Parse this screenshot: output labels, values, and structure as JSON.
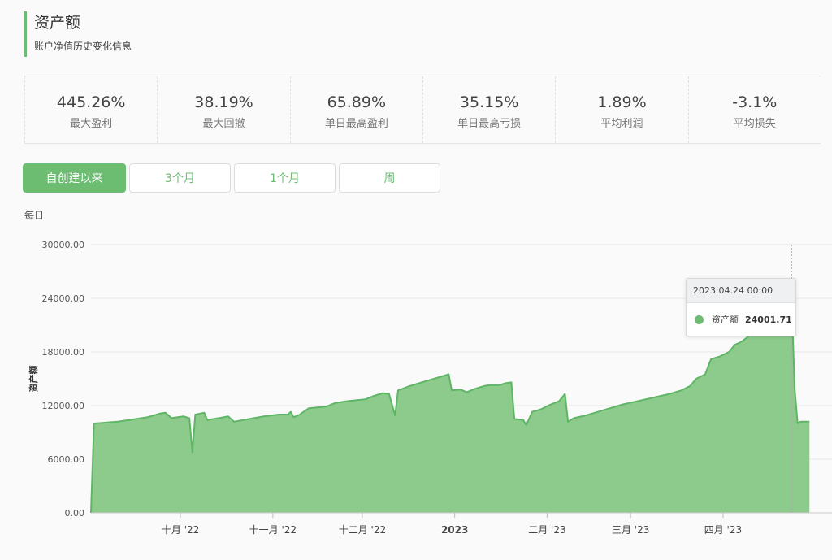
{
  "header": {
    "title": "资产额",
    "subtitle": "账户净值历史变化信息"
  },
  "stats": [
    {
      "value": "445.26%",
      "label": "最大盈利"
    },
    {
      "value": "38.19%",
      "label": "最大回撤"
    },
    {
      "value": "65.89%",
      "label": "单日最高盈利"
    },
    {
      "value": "35.15%",
      "label": "单日最高亏损"
    },
    {
      "value": "1.89%",
      "label": "平均利润"
    },
    {
      "value": "-3.1%",
      "label": "平均损失"
    }
  ],
  "tabs": [
    "自创建以来",
    "3个月",
    "1个月",
    "周"
  ],
  "period_label": "每日",
  "colors": {
    "accent": "#6cbd72",
    "fill": "#8dcb8c",
    "line": "#5fb566"
  },
  "tooltip": {
    "date": "2023.04.24 00:00",
    "series": "资产额",
    "value": "24001.71"
  },
  "chart_data": {
    "type": "area",
    "ylabel": "资产额",
    "xlabel": "",
    "ylim": [
      0,
      30000
    ],
    "y_ticks": [
      "0.00",
      "6000.00",
      "12000.00",
      "18000.00",
      "24000.00",
      "30000.00"
    ],
    "x_ticks": [
      {
        "label": "十月 '22",
        "date": "2022-10-01"
      },
      {
        "label": "十一月 '22",
        "date": "2022-11-01"
      },
      {
        "label": "十二月 '22",
        "date": "2022-12-01"
      },
      {
        "label": "2023",
        "date": "2023-01-01"
      },
      {
        "label": "二月 '23",
        "date": "2023-02-01"
      },
      {
        "label": "三月 '23",
        "date": "2023-03-01"
      },
      {
        "label": "四月 '23",
        "date": "2023-04-01"
      }
    ],
    "xlim": [
      "2022-09-01",
      "2023-05-01"
    ],
    "series": [
      {
        "name": "资产额",
        "points": [
          [
            "2022-09-01",
            0
          ],
          [
            "2022-09-02",
            10000
          ],
          [
            "2022-09-06",
            10100
          ],
          [
            "2022-09-10",
            10200
          ],
          [
            "2022-09-14",
            10400
          ],
          [
            "2022-09-20",
            10700
          ],
          [
            "2022-09-24",
            11100
          ],
          [
            "2022-09-26",
            11200
          ],
          [
            "2022-09-28",
            10600
          ],
          [
            "2022-10-02",
            10800
          ],
          [
            "2022-10-04",
            10600
          ],
          [
            "2022-10-05",
            6800
          ],
          [
            "2022-10-06",
            11000
          ],
          [
            "2022-10-09",
            11200
          ],
          [
            "2022-10-10",
            10400
          ],
          [
            "2022-10-14",
            10600
          ],
          [
            "2022-10-17",
            10800
          ],
          [
            "2022-10-19",
            10200
          ],
          [
            "2022-10-24",
            10500
          ],
          [
            "2022-10-29",
            10800
          ],
          [
            "2022-11-03",
            11000
          ],
          [
            "2022-11-06",
            11000
          ],
          [
            "2022-11-07",
            11300
          ],
          [
            "2022-11-08",
            10700
          ],
          [
            "2022-11-10",
            11000
          ],
          [
            "2022-11-13",
            11700
          ],
          [
            "2022-11-16",
            11800
          ],
          [
            "2022-11-19",
            11900
          ],
          [
            "2022-11-22",
            12300
          ],
          [
            "2022-11-26",
            12500
          ],
          [
            "2022-11-29",
            12600
          ],
          [
            "2022-12-02",
            12700
          ],
          [
            "2022-12-05",
            13100
          ],
          [
            "2022-12-08",
            13400
          ],
          [
            "2022-12-10",
            13300
          ],
          [
            "2022-12-12",
            10900
          ],
          [
            "2022-12-13",
            13700
          ],
          [
            "2022-12-17",
            14200
          ],
          [
            "2022-12-20",
            14500
          ],
          [
            "2022-12-24",
            14900
          ],
          [
            "2022-12-27",
            15200
          ],
          [
            "2022-12-30",
            15500
          ],
          [
            "2022-12-31",
            13700
          ],
          [
            "2023-01-03",
            13800
          ],
          [
            "2023-01-05",
            13500
          ],
          [
            "2023-01-08",
            13900
          ],
          [
            "2023-01-11",
            14200
          ],
          [
            "2023-01-13",
            14300
          ],
          [
            "2023-01-16",
            14300
          ],
          [
            "2023-01-18",
            14500
          ],
          [
            "2023-01-20",
            14600
          ],
          [
            "2023-01-21",
            10500
          ],
          [
            "2023-01-24",
            10400
          ],
          [
            "2023-01-25",
            9800
          ],
          [
            "2023-01-27",
            11300
          ],
          [
            "2023-01-30",
            11600
          ],
          [
            "2023-02-02",
            12100
          ],
          [
            "2023-02-05",
            12500
          ],
          [
            "2023-02-07",
            13300
          ],
          [
            "2023-02-08",
            10200
          ],
          [
            "2023-02-10",
            10600
          ],
          [
            "2023-02-14",
            10900
          ],
          [
            "2023-02-18",
            11300
          ],
          [
            "2023-02-22",
            11700
          ],
          [
            "2023-02-26",
            12100
          ],
          [
            "2023-03-02",
            12400
          ],
          [
            "2023-03-06",
            12700
          ],
          [
            "2023-03-10",
            13000
          ],
          [
            "2023-03-14",
            13300
          ],
          [
            "2023-03-18",
            13700
          ],
          [
            "2023-03-21",
            14200
          ],
          [
            "2023-03-23",
            15000
          ],
          [
            "2023-03-26",
            15500
          ],
          [
            "2023-03-28",
            17200
          ],
          [
            "2023-03-31",
            17500
          ],
          [
            "2023-04-03",
            18000
          ],
          [
            "2023-04-05",
            18800
          ],
          [
            "2023-04-07",
            19100
          ],
          [
            "2023-04-09",
            19600
          ],
          [
            "2023-04-11",
            20400
          ],
          [
            "2023-04-14",
            21200
          ],
          [
            "2023-04-17",
            21800
          ],
          [
            "2023-04-20",
            22000
          ],
          [
            "2023-04-22",
            22600
          ],
          [
            "2023-04-24",
            24001.71
          ],
          [
            "2023-04-25",
            14000
          ],
          [
            "2023-04-26",
            10000
          ],
          [
            "2023-04-27",
            10200
          ],
          [
            "2023-04-30",
            10200
          ]
        ]
      }
    ],
    "grid": true,
    "highlight": {
      "date": "2023-04-24",
      "value": 24001.71
    }
  }
}
